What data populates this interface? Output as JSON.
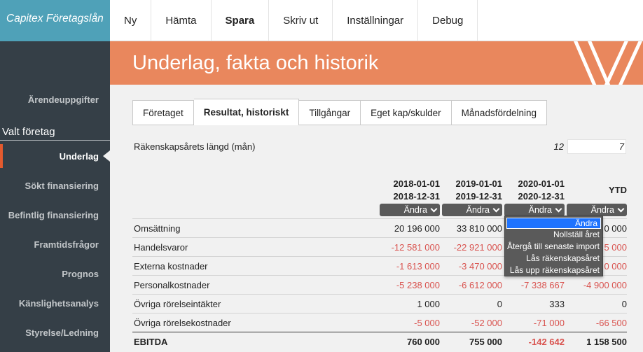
{
  "brand": "Capitex Företagslån",
  "topnav": [
    {
      "label": "Ny",
      "bold": false
    },
    {
      "label": "Hämta",
      "bold": false
    },
    {
      "label": "Spara",
      "bold": true
    },
    {
      "label": "Skriv ut",
      "bold": false
    },
    {
      "label": "Inställningar",
      "bold": false
    },
    {
      "label": "Debug",
      "bold": false
    }
  ],
  "sidebar": {
    "top_item": "Ärendeuppgifter",
    "section": "Valt företag",
    "items": [
      {
        "label": "Underlag",
        "active": true
      },
      {
        "label": "Sökt finansiering",
        "active": false
      },
      {
        "label": "Befintlig finansiering",
        "active": false
      },
      {
        "label": "Framtidsfrågor",
        "active": false
      },
      {
        "label": "Prognos",
        "active": false
      },
      {
        "label": "Känslighetsanalys",
        "active": false
      },
      {
        "label": "Styrelse/Ledning",
        "active": false
      }
    ]
  },
  "page_title": "Underlag, fakta och historik",
  "tabs": [
    {
      "label": "Företaget",
      "active": false
    },
    {
      "label": "Resultat, historiskt",
      "active": true
    },
    {
      "label": "Tillgångar",
      "active": false
    },
    {
      "label": "Eget kap/skulder",
      "active": false
    },
    {
      "label": "Månadsfördelning",
      "active": false
    }
  ],
  "fiscal_year": {
    "label": "Räkenskapsårets längd (mån)",
    "value": "12",
    "ytd_value": "7"
  },
  "columns": [
    {
      "start": "2018-01-01",
      "end": "2018-12-31",
      "button": "Ändra"
    },
    {
      "start": "2019-01-01",
      "end": "2019-12-31",
      "button": "Ändra"
    },
    {
      "start": "2020-01-01",
      "end": "2020-12-31",
      "button": "Ändra"
    },
    {
      "start": "YTD",
      "end": "",
      "button": "Ändra"
    }
  ],
  "rows": [
    {
      "label": "Omsättning",
      "values": [
        "20 196 000",
        "33 810 000",
        "",
        "0 000"
      ],
      "neg": [
        false,
        false,
        false,
        false
      ]
    },
    {
      "label": "Handelsvaror",
      "values": [
        "-12 581 000",
        "-22 921 000",
        "",
        "5 000"
      ],
      "neg": [
        true,
        true,
        true,
        true
      ]
    },
    {
      "label": "Externa kostnader",
      "values": [
        "-1 613 000",
        "-3 470 000",
        "",
        "0 000"
      ],
      "neg": [
        true,
        true,
        true,
        true
      ]
    },
    {
      "label": "Personalkostnader",
      "values": [
        "-5 238 000",
        "-6 612 000",
        "-7 338 667",
        "-4 900 000"
      ],
      "neg": [
        true,
        true,
        true,
        true
      ]
    },
    {
      "label": "Övriga rörelseintäkter",
      "values": [
        "1 000",
        "0",
        "333",
        "0"
      ],
      "neg": [
        false,
        false,
        false,
        false
      ]
    },
    {
      "label": "Övriga rörelsekostnader",
      "values": [
        "-5 000",
        "-52 000",
        "-71 000",
        "-66 500"
      ],
      "neg": [
        true,
        true,
        true,
        true
      ]
    },
    {
      "label": "EBITDA",
      "values": [
        "760 000",
        "755 000",
        "-142 642",
        "1 158 500"
      ],
      "neg": [
        false,
        false,
        true,
        false
      ],
      "total": true
    }
  ],
  "dropdown": {
    "items": [
      "Ändra",
      "Nollställ året",
      "Återgå till senaste import",
      "Lås räkenskapsåret",
      "Lås upp räkenskapsåret"
    ],
    "selected_index": 0
  },
  "colors": {
    "brand": "#4fa1b8",
    "sidebar": "#353f47",
    "header": "#e9875d",
    "negative": "#d9534f",
    "active_marker": "#e45a2e",
    "selection": "#1e73ff"
  }
}
